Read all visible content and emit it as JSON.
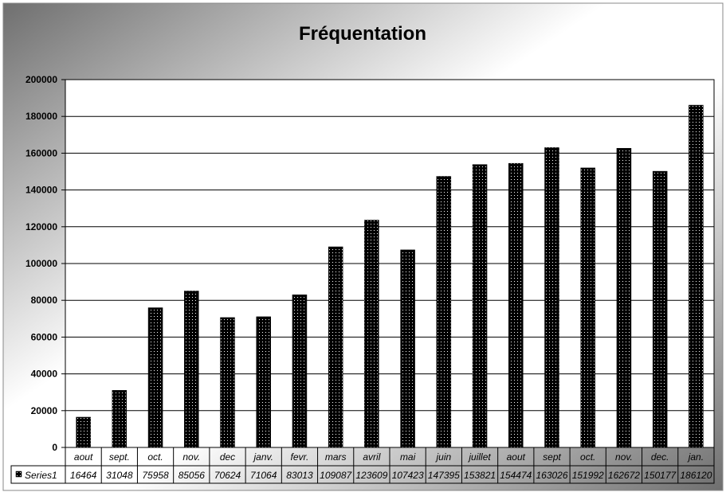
{
  "chart_data": {
    "type": "bar",
    "title": "Fréquentation",
    "categories": [
      "aout",
      "sept.",
      "oct.",
      "nov.",
      "dec",
      "janv.",
      "fevr.",
      "mars",
      "avril",
      "mai",
      "juin",
      "juillet",
      "aout",
      "sept",
      "oct.",
      "nov.",
      "dec.",
      "jan."
    ],
    "series": [
      {
        "name": "Series1",
        "values": [
          16464,
          31048,
          75958,
          85056,
          70624,
          71064,
          83013,
          109087,
          123609,
          107423,
          147395,
          153821,
          154474,
          163026,
          151992,
          162672,
          150177,
          186120
        ]
      }
    ],
    "ylim": [
      0,
      200000
    ],
    "yticks": [
      0,
      20000,
      40000,
      60000,
      80000,
      100000,
      120000,
      140000,
      160000,
      180000,
      200000
    ],
    "grid": true,
    "legend_placement": "data-table-left",
    "colors": {
      "bar_fill": "#000000",
      "bar_dots": "#ffffff",
      "plot_background": "#ffffff",
      "gradient_dark": "#6f6f6f",
      "gradient_light": "#ffffff"
    }
  }
}
